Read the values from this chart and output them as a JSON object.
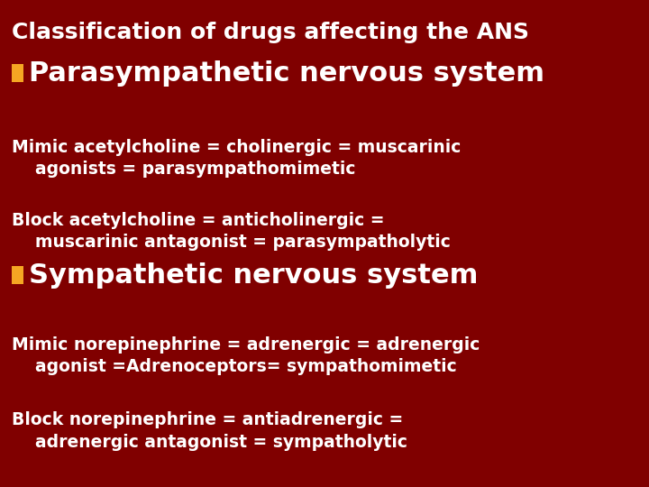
{
  "background_color": "#800000",
  "title_line1": "Classification of drugs affecting the ANS",
  "title_line1_color": "#FFFFFF",
  "title_line1_fontsize": 18,
  "heading1_bullet_color": "#F5A623",
  "heading1_text": "Parasympathetic nervous system",
  "heading1_fontsize": 22,
  "heading1_color": "#FFFFFF",
  "para1_line1": "Mimic acetylcholine = cholinergic = muscarinic",
  "para1_line2": "    agonists = parasympathomimetic",
  "para1_fontsize": 13.5,
  "para1_color": "#FFFFFF",
  "para2_line1": "Block acetylcholine = anticholinergic =",
  "para2_line2": "    muscarinic antagonist = parasympatholytic",
  "para2_fontsize": 13.5,
  "para2_color": "#FFFFFF",
  "heading2_bullet_color": "#F5A623",
  "heading2_text": "Sympathetic nervous system",
  "heading2_fontsize": 22,
  "heading2_color": "#FFFFFF",
  "para3_line1": "Mimic norepinephrine = adrenergic = adrenergic",
  "para3_line2": "    agonist =Adrenoceptors= sympathomimetic",
  "para3_fontsize": 13.5,
  "para3_color": "#FFFFFF",
  "para4_line1": "Block norepinephrine = antiadrenergic =",
  "para4_line2": "    adrenergic antagonist = sympatholytic",
  "para4_fontsize": 13.5,
  "para4_color": "#FFFFFF"
}
